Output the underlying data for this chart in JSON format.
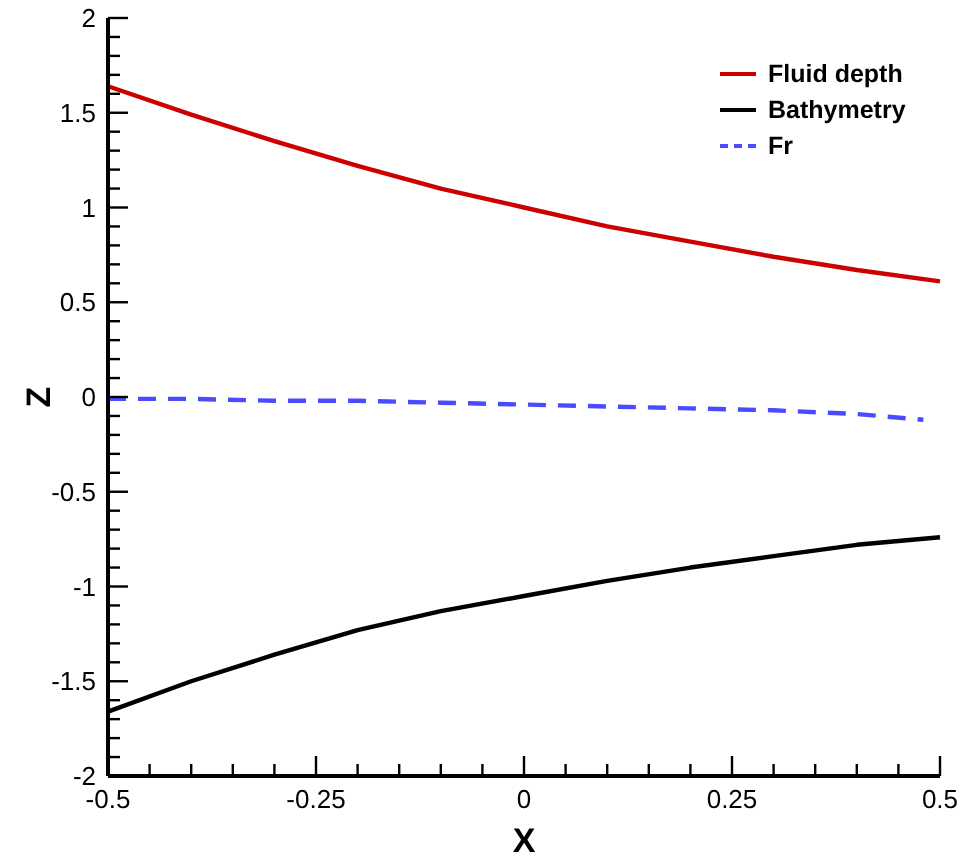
{
  "chart_data": {
    "type": "line",
    "xlabel": "X",
    "ylabel": "Z",
    "xlim": [
      -0.5,
      0.5
    ],
    "ylim": [
      -2,
      2
    ],
    "xticks": [
      -0.5,
      {
        "value": -0.45,
        "label": null
      },
      {
        "value": -0.4,
        "label": null
      },
      {
        "value": -0.35,
        "label": null
      },
      {
        "value": -0.3,
        "label": null
      },
      -0.25,
      {
        "value": -0.2,
        "label": null
      },
      {
        "value": -0.15,
        "label": null
      },
      {
        "value": -0.1,
        "label": null
      },
      {
        "value": -0.05,
        "label": null
      },
      0,
      {
        "value": 0.05,
        "label": null
      },
      {
        "value": 0.1,
        "label": null
      },
      {
        "value": 0.15,
        "label": null
      },
      {
        "value": 0.2,
        "label": null
      },
      0.25,
      {
        "value": 0.3,
        "label": null
      },
      {
        "value": 0.35,
        "label": null
      },
      {
        "value": 0.4,
        "label": null
      },
      {
        "value": 0.45,
        "label": null
      },
      0.5
    ],
    "yticks": [
      -2,
      {
        "value": -1.9,
        "label": null
      },
      {
        "value": -1.8,
        "label": null
      },
      {
        "value": -1.7,
        "label": null
      },
      {
        "value": -1.6,
        "label": null
      },
      -1.5,
      {
        "value": -1.4,
        "label": null
      },
      {
        "value": -1.3,
        "label": null
      },
      {
        "value": -1.2,
        "label": null
      },
      {
        "value": -1.1,
        "label": null
      },
      -1,
      {
        "value": -0.9,
        "label": null
      },
      {
        "value": -0.8,
        "label": null
      },
      {
        "value": -0.7,
        "label": null
      },
      {
        "value": -0.6,
        "label": null
      },
      -0.5,
      {
        "value": -0.4,
        "label": null
      },
      {
        "value": -0.3,
        "label": null
      },
      {
        "value": -0.2,
        "label": null
      },
      {
        "value": -0.1,
        "label": null
      },
      0,
      {
        "value": 0.1,
        "label": null
      },
      {
        "value": 0.2,
        "label": null
      },
      {
        "value": 0.3,
        "label": null
      },
      {
        "value": 0.4,
        "label": null
      },
      0.5,
      {
        "value": 0.6,
        "label": null
      },
      {
        "value": 0.7,
        "label": null
      },
      {
        "value": 0.8,
        "label": null
      },
      {
        "value": 0.9,
        "label": null
      },
      1,
      {
        "value": 1.1,
        "label": null
      },
      {
        "value": 1.2,
        "label": null
      },
      {
        "value": 1.3,
        "label": null
      },
      {
        "value": 1.4,
        "label": null
      },
      1.5,
      {
        "value": 1.6,
        "label": null
      },
      {
        "value": 1.7,
        "label": null
      },
      {
        "value": 1.8,
        "label": null
      },
      {
        "value": 1.9,
        "label": null
      },
      2
    ],
    "grid": false,
    "legend": "top right",
    "marker": "none",
    "series": [
      {
        "name": "Fluid depth",
        "color": "#cc0000",
        "line_style": "solid",
        "x": [
          -0.5,
          -0.4,
          -0.3,
          -0.2,
          -0.1,
          0,
          0.1,
          0.2,
          0.3,
          0.4,
          0.5
        ],
        "values": [
          1.64,
          1.49,
          1.35,
          1.22,
          1.1,
          1.0,
          0.9,
          0.82,
          0.74,
          0.67,
          0.61
        ]
      },
      {
        "name": "Bathymetry",
        "color": "#000000",
        "line_style": "solid",
        "x": [
          -0.5,
          -0.4,
          -0.3,
          -0.2,
          -0.1,
          0,
          0.1,
          0.2,
          0.3,
          0.4,
          0.5
        ],
        "values": [
          -1.66,
          -1.5,
          -1.36,
          -1.23,
          -1.13,
          -1.05,
          -0.97,
          -0.9,
          -0.84,
          -0.78,
          -0.74
        ]
      },
      {
        "name": "Fr",
        "color": "#4a4aff",
        "line_style": "dashed",
        "x": [
          -0.5,
          -0.4,
          -0.3,
          -0.2,
          -0.1,
          0,
          0.1,
          0.2,
          0.3,
          0.4,
          0.48
        ],
        "values": [
          -0.01,
          -0.01,
          -0.02,
          -0.02,
          -0.03,
          -0.04,
          -0.05,
          -0.06,
          -0.07,
          -0.09,
          -0.12
        ]
      }
    ]
  }
}
